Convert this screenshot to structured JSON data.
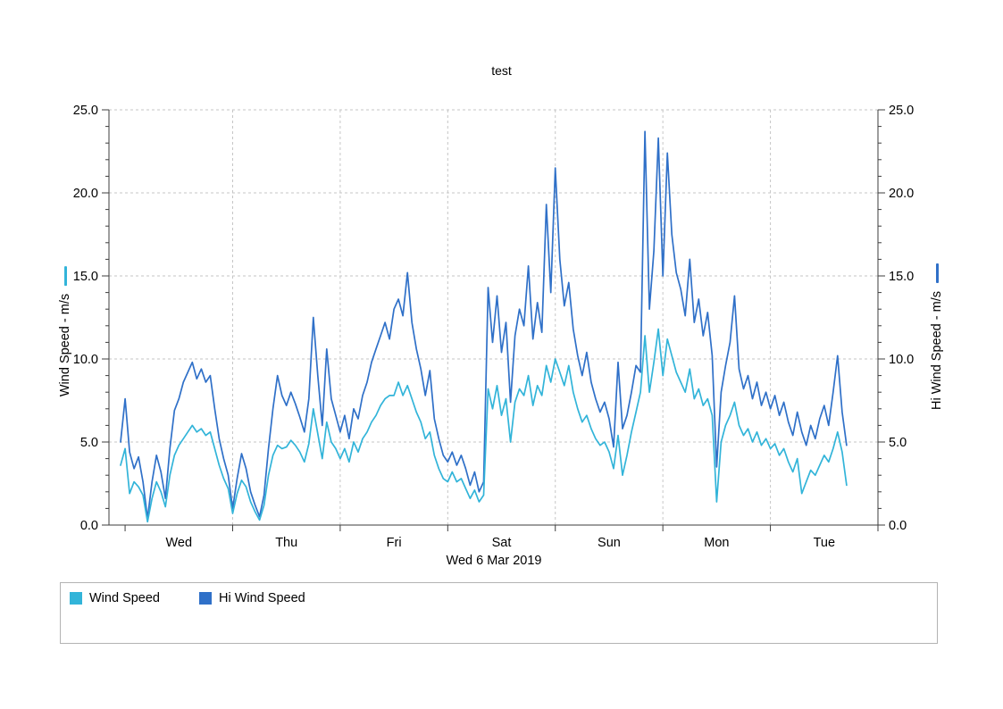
{
  "title": "test",
  "axes": {
    "left": {
      "title": "Wind Speed - m/s",
      "tick_labels": [
        "0.0",
        "5.0",
        "10.0",
        "15.0",
        "20.0",
        "25.0"
      ]
    },
    "right": {
      "title": "Hi Wind Speed - m/s",
      "tick_labels": [
        "0.0",
        "5.0",
        "10.0",
        "15.0",
        "20.0",
        "25.0"
      ]
    },
    "x": {
      "title": "Wed 6 Mar 2019",
      "day_labels": [
        "Wed",
        "Thu",
        "Fri",
        "Sat",
        "Sun",
        "Mon",
        "Tue"
      ]
    }
  },
  "legend": {
    "items": [
      {
        "label": "Wind Speed",
        "color": "#32b4d9"
      },
      {
        "label": "Hi Wind Speed",
        "color": "#2f70c8"
      }
    ]
  },
  "chart_data": {
    "type": "line",
    "title": "test",
    "xlabel": "Wed 6 Mar 2019",
    "ylabel_left": "Wind Speed - m/s",
    "ylabel_right": "Hi Wind Speed - m/s",
    "ylim": [
      0,
      25
    ],
    "y_tick_step_major": 5,
    "y_tick_step_minor": 1,
    "grid": true,
    "legend_position": "bottom",
    "x_axis": {
      "unit": "hours relative to Wed 6 Mar 2019 00:00",
      "range": [
        -3.6,
        168
      ],
      "day_tick_hours": [
        0,
        24,
        48,
        72,
        96,
        120,
        144,
        168
      ],
      "day_labels": [
        "Wed",
        "Thu",
        "Fri",
        "Sat",
        "Sun",
        "Mon",
        "Tue"
      ]
    },
    "x_hours_start": -1,
    "x_hours_step": 1,
    "n_points": 163,
    "series": [
      {
        "name": "Wind Speed",
        "axis": "left",
        "color": "#32b4d9",
        "values": [
          3.6,
          4.6,
          1.9,
          2.6,
          2.3,
          1.8,
          0.2,
          1.6,
          2.6,
          2.0,
          1.1,
          3.0,
          4.2,
          4.8,
          5.2,
          5.6,
          6.0,
          5.6,
          5.8,
          5.4,
          5.6,
          4.6,
          3.6,
          2.8,
          2.2,
          0.7,
          1.9,
          2.7,
          2.3,
          1.4,
          0.8,
          0.3,
          1.2,
          3.0,
          4.2,
          4.8,
          4.6,
          4.7,
          5.1,
          4.8,
          4.4,
          3.8,
          4.9,
          7.0,
          5.5,
          4.0,
          6.2,
          5.0,
          4.6,
          4.0,
          4.6,
          3.8,
          5.0,
          4.4,
          5.2,
          5.6,
          6.2,
          6.6,
          7.2,
          7.6,
          7.8,
          7.8,
          8.6,
          7.8,
          8.4,
          7.6,
          6.8,
          6.2,
          5.2,
          5.6,
          4.2,
          3.4,
          2.8,
          2.6,
          3.2,
          2.6,
          2.8,
          2.2,
          1.6,
          2.1,
          1.4,
          1.8,
          8.2,
          7.0,
          8.4,
          6.6,
          7.6,
          5.0,
          7.4,
          8.2,
          7.8,
          9.0,
          7.2,
          8.4,
          7.8,
          9.6,
          8.6,
          10.0,
          9.2,
          8.4,
          9.6,
          8.0,
          7.0,
          6.2,
          6.6,
          5.8,
          5.2,
          4.8,
          5.0,
          4.4,
          3.4,
          5.4,
          3.0,
          4.2,
          5.6,
          6.8,
          8.0,
          11.4,
          8.0,
          9.8,
          11.8,
          9.0,
          11.2,
          10.2,
          9.2,
          8.6,
          8.0,
          9.4,
          7.6,
          8.2,
          7.2,
          7.6,
          6.6,
          1.4,
          5.0,
          6.0,
          6.6,
          7.4,
          6.0,
          5.4,
          5.8,
          5.0,
          5.6,
          4.8,
          5.2,
          4.6,
          4.9,
          4.2,
          4.6,
          3.8,
          3.2,
          4.0,
          1.9,
          2.6,
          3.3,
          3.0,
          3.6,
          4.2,
          3.8,
          4.6,
          5.6,
          4.4,
          2.4
        ]
      },
      {
        "name": "Hi Wind Speed",
        "axis": "right",
        "color": "#2f70c8",
        "values": [
          5.0,
          7.6,
          4.4,
          3.4,
          4.1,
          2.6,
          0.4,
          2.6,
          4.2,
          3.2,
          1.6,
          4.6,
          6.9,
          7.6,
          8.6,
          9.2,
          9.8,
          8.8,
          9.4,
          8.6,
          9.0,
          7.0,
          5.2,
          4.0,
          3.0,
          1.0,
          2.8,
          4.3,
          3.4,
          2.0,
          1.2,
          0.5,
          1.8,
          4.6,
          7.0,
          9.0,
          7.8,
          7.2,
          8.0,
          7.3,
          6.5,
          5.6,
          7.6,
          12.5,
          9.0,
          6.0,
          10.6,
          7.6,
          6.6,
          5.6,
          6.6,
          5.2,
          7.0,
          6.4,
          7.8,
          8.6,
          9.8,
          10.6,
          11.4,
          12.2,
          11.2,
          13.0,
          13.6,
          12.6,
          15.2,
          12.2,
          10.6,
          9.4,
          7.8,
          9.3,
          6.4,
          5.2,
          4.2,
          3.8,
          4.4,
          3.6,
          4.2,
          3.4,
          2.4,
          3.2,
          2.0,
          2.6,
          14.3,
          11.0,
          13.8,
          10.4,
          12.2,
          7.4,
          11.4,
          13.0,
          12.0,
          15.6,
          11.2,
          13.4,
          11.6,
          19.3,
          14.0,
          21.5,
          16.0,
          13.2,
          14.6,
          11.8,
          10.2,
          9.0,
          10.4,
          8.6,
          7.6,
          6.8,
          7.4,
          6.4,
          4.7,
          9.8,
          5.8,
          6.6,
          8.0,
          9.6,
          9.2,
          23.7,
          13.0,
          16.5,
          23.3,
          15.0,
          22.4,
          17.5,
          15.2,
          14.2,
          12.6,
          16.0,
          12.2,
          13.6,
          11.4,
          12.8,
          10.2,
          3.5,
          8.0,
          9.6,
          11.0,
          13.8,
          9.4,
          8.2,
          9.0,
          7.6,
          8.6,
          7.2,
          8.0,
          7.0,
          7.8,
          6.6,
          7.4,
          6.2,
          5.4,
          6.8,
          5.6,
          4.8,
          6.0,
          5.2,
          6.4,
          7.2,
          6.0,
          8.0,
          10.2,
          6.8,
          4.8
        ]
      }
    ]
  }
}
